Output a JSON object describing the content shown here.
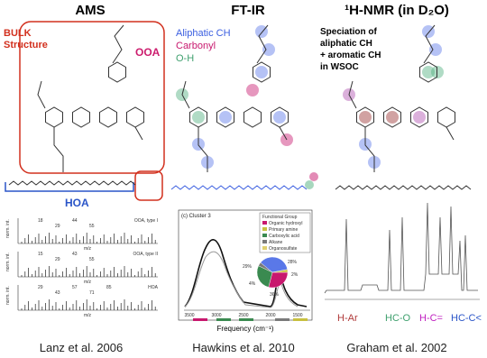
{
  "panels": {
    "ams": {
      "title": "AMS",
      "bulk": [
        "BULK",
        "Structure"
      ],
      "ooa": "OOA",
      "hoa": "HOA",
      "spectra": [
        {
          "label": "OOA, type I",
          "peaks": [
            "18",
            "29",
            "44",
            "55"
          ]
        },
        {
          "label": "OOA, type II",
          "peaks": [
            "15",
            "29",
            "43",
            "55"
          ]
        },
        {
          "label": "HOA",
          "peaks": [
            "29",
            "43",
            "57",
            "71",
            "85"
          ]
        }
      ],
      "xlabel": "m/z",
      "ylabel": "norm. int.",
      "citation": "Lanz et al. 2006"
    },
    "ftir": {
      "title": "FT-IR",
      "groups": [
        "Aliphatic CH",
        "Carbonyl",
        "O-H"
      ],
      "panel": "(c) Cluster 3",
      "legend_title": "Functional Group",
      "legend": [
        "Organic hydroxyl",
        "Primary amine",
        "Carboxylic acid",
        "Alkane",
        "Organosulfate"
      ],
      "pie_labels": [
        "29%",
        "28%",
        "4%",
        "36%",
        "2%"
      ],
      "xticks": [
        "3500",
        "3000",
        "2500",
        "2000",
        "1500"
      ],
      "xlabel": "Frequency (cm⁻¹)",
      "citation": "Hawkins et al. 2010"
    },
    "nmr": {
      "title": "¹H-NMR (in D₂O)",
      "description": [
        "Speciation of",
        "aliphatic CH",
        "+ aromatic CH",
        "in WSOC"
      ],
      "peaks": [
        "H-Ar",
        "HC-O",
        "H-C=",
        "HC-C<"
      ],
      "citation": "Graham et al. 2002"
    }
  }
}
